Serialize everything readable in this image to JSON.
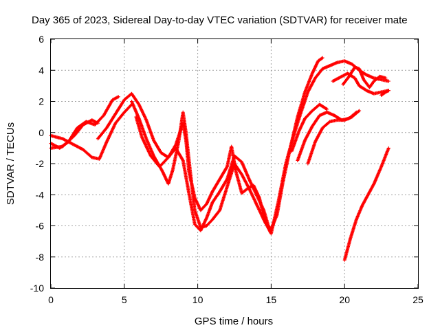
{
  "chart_data": {
    "type": "scatter",
    "title": "Day 365 of 2023, Sidereal Day-to-day VTEC variation (SDTVAR) for receiver mate",
    "xlabel": "GPS time / hours",
    "ylabel": "SDTVAR / TECUs",
    "xlim": [
      0,
      25
    ],
    "ylim": [
      -10,
      6
    ],
    "xticks": [
      "0",
      "5",
      "10",
      "15",
      "20",
      "25"
    ],
    "yticks": [
      "6",
      "4",
      "2",
      "0",
      "-2",
      "-4",
      "-6",
      "-8",
      "-10"
    ],
    "grid": true,
    "marker": "+",
    "color": "#ff0000",
    "series": [
      {
        "points": [
          [
            0,
            -0.7
          ],
          [
            0.6,
            -1.0
          ],
          [
            1.2,
            -0.6
          ],
          [
            1.8,
            0.3
          ],
          [
            2.4,
            0.7
          ],
          [
            3.0,
            0.5
          ],
          [
            3.6,
            1.1
          ],
          [
            4.2,
            2.1
          ],
          [
            4.6,
            2.3
          ]
        ]
      },
      {
        "points": [
          [
            0,
            -0.2
          ],
          [
            0.8,
            -0.4
          ],
          [
            1.6,
            -0.8
          ],
          [
            2.2,
            -1.1
          ],
          [
            2.8,
            -1.6
          ],
          [
            3.3,
            -1.7
          ],
          [
            3.8,
            -0.6
          ],
          [
            4.4,
            0.6
          ],
          [
            5.0,
            1.3
          ],
          [
            5.5,
            1.8
          ]
        ]
      },
      {
        "points": [
          [
            0,
            -1.0
          ],
          [
            0.8,
            -0.9
          ],
          [
            1.6,
            -0.2
          ],
          [
            2.2,
            0.5
          ],
          [
            2.8,
            0.8
          ],
          [
            3.2,
            0.6
          ]
        ]
      },
      {
        "points": [
          [
            3.2,
            -0.4
          ],
          [
            3.8,
            0.3
          ],
          [
            4.4,
            1.2
          ],
          [
            5.0,
            2.1
          ],
          [
            5.5,
            2.5
          ],
          [
            6.0,
            1.8
          ],
          [
            6.5,
            0.8
          ],
          [
            7.0,
            -0.5
          ],
          [
            7.5,
            -1.3
          ],
          [
            8.0,
            -1.6
          ],
          [
            8.5,
            -0.8
          ],
          [
            9.0,
            0.6
          ],
          [
            9.2,
            -0.5
          ],
          [
            9.4,
            -2.5
          ],
          [
            9.8,
            -4.2
          ],
          [
            10.2,
            -5.0
          ],
          [
            10.6,
            -4.6
          ],
          [
            11.0,
            -3.8
          ],
          [
            11.5,
            -3.0
          ],
          [
            12.0,
            -2.2
          ],
          [
            12.3,
            -0.9
          ],
          [
            12.6,
            -2.5
          ],
          [
            13.0,
            -3.9
          ],
          [
            13.4,
            -3.6
          ],
          [
            13.8,
            -3.4
          ],
          [
            14.2,
            -4.2
          ],
          [
            14.6,
            -5.8
          ],
          [
            15.0,
            -6.2
          ],
          [
            15.4,
            -5.3
          ],
          [
            15.8,
            -3.2
          ],
          [
            16.3,
            -1.0
          ],
          [
            16.8,
            1.0
          ],
          [
            17.3,
            2.6
          ],
          [
            17.8,
            3.8
          ],
          [
            18.2,
            4.6
          ],
          [
            18.5,
            4.8
          ]
        ]
      },
      {
        "points": [
          [
            5.5,
            2.0
          ],
          [
            6.0,
            0.9
          ],
          [
            6.5,
            -0.4
          ],
          [
            7.0,
            -1.5
          ],
          [
            7.6,
            -2.5
          ],
          [
            8.0,
            -3.3
          ],
          [
            8.3,
            -2.4
          ],
          [
            8.7,
            -0.6
          ],
          [
            9.0,
            1.3
          ],
          [
            9.2,
            0.0
          ],
          [
            9.5,
            -2.6
          ],
          [
            9.8,
            -5.0
          ],
          [
            10.2,
            -6.1
          ],
          [
            10.6,
            -6.0
          ],
          [
            11.0,
            -5.6
          ],
          [
            11.5,
            -5.0
          ],
          [
            12.0,
            -3.5
          ],
          [
            12.5,
            -2.0
          ],
          [
            13.0,
            -2.7
          ],
          [
            13.5,
            -3.6
          ],
          [
            14.0,
            -4.6
          ],
          [
            14.5,
            -5.6
          ],
          [
            15.0,
            -6.5
          ],
          [
            15.5,
            -4.4
          ],
          [
            16.0,
            -2.0
          ],
          [
            16.5,
            -0.3
          ],
          [
            17.0,
            1.2
          ],
          [
            17.5,
            2.6
          ],
          [
            18.0,
            3.5
          ],
          [
            18.5,
            4.1
          ],
          [
            19.0,
            4.3
          ],
          [
            19.5,
            4.5
          ],
          [
            20.0,
            4.6
          ],
          [
            20.5,
            4.4
          ],
          [
            21.0,
            4.0
          ],
          [
            21.5,
            3.7
          ],
          [
            22.0,
            3.5
          ],
          [
            22.5,
            3.4
          ],
          [
            23.0,
            3.3
          ]
        ]
      },
      {
        "points": [
          [
            5.8,
            1.0
          ],
          [
            6.2,
            -0.3
          ],
          [
            6.8,
            -1.5
          ],
          [
            7.4,
            -2.2
          ],
          [
            8.0,
            -1.6
          ],
          [
            8.5,
            -1.0
          ],
          [
            9.0,
            -1.8
          ],
          [
            9.4,
            -3.9
          ],
          [
            9.8,
            -5.9
          ],
          [
            10.2,
            -6.3
          ],
          [
            10.6,
            -5.5
          ],
          [
            11.0,
            -4.5
          ],
          [
            11.5,
            -3.8
          ],
          [
            12.0,
            -3.0
          ],
          [
            12.5,
            -1.5
          ],
          [
            13.0,
            -1.9
          ],
          [
            13.5,
            -3.0
          ],
          [
            14.0,
            -4.0
          ],
          [
            14.5,
            -5.0
          ],
          [
            14.9,
            -6.3
          ]
        ]
      },
      {
        "points": [
          [
            16.4,
            -1.2
          ],
          [
            16.9,
            0.1
          ],
          [
            17.3,
            0.9
          ],
          [
            17.8,
            1.4
          ],
          [
            18.3,
            1.8
          ],
          [
            18.8,
            1.5
          ]
        ]
      },
      {
        "points": [
          [
            16.8,
            -1.8
          ],
          [
            17.3,
            -0.5
          ],
          [
            17.8,
            0.4
          ],
          [
            18.3,
            1.1
          ],
          [
            18.8,
            1.3
          ],
          [
            19.3,
            1.1
          ],
          [
            19.8,
            0.8
          ],
          [
            20.3,
            0.9
          ],
          [
            20.8,
            1.3
          ]
        ]
      },
      {
        "points": [
          [
            17.5,
            -2.0
          ],
          [
            18.0,
            -0.6
          ],
          [
            18.5,
            0.3
          ],
          [
            19.0,
            0.7
          ],
          [
            19.5,
            0.8
          ],
          [
            20.0,
            0.8
          ],
          [
            20.5,
            1.0
          ],
          [
            21.0,
            1.4
          ]
        ]
      },
      {
        "points": [
          [
            19.2,
            3.3
          ],
          [
            19.8,
            3.6
          ],
          [
            20.2,
            3.8
          ],
          [
            20.7,
            3.5
          ],
          [
            21.0,
            3.0
          ],
          [
            21.5,
            2.7
          ],
          [
            22.0,
            2.5
          ],
          [
            22.5,
            2.6
          ],
          [
            23.0,
            2.7
          ]
        ]
      },
      {
        "points": [
          [
            19.9,
            3.1
          ],
          [
            20.3,
            3.6
          ],
          [
            20.7,
            4.2
          ],
          [
            21.0,
            4.1
          ],
          [
            21.3,
            3.4
          ],
          [
            21.7,
            2.9
          ],
          [
            22.0,
            3.3
          ],
          [
            22.4,
            3.6
          ],
          [
            22.8,
            3.5
          ]
        ]
      },
      {
        "points": [
          [
            22.5,
            2.4
          ],
          [
            22.8,
            2.6
          ],
          [
            23.0,
            2.7
          ]
        ]
      },
      {
        "points": [
          [
            20.0,
            -8.2
          ],
          [
            20.4,
            -6.8
          ],
          [
            20.8,
            -5.6
          ],
          [
            21.2,
            -4.7
          ],
          [
            21.6,
            -4.0
          ],
          [
            22.0,
            -3.3
          ],
          [
            22.5,
            -2.2
          ],
          [
            23.0,
            -1.0
          ]
        ]
      }
    ]
  }
}
